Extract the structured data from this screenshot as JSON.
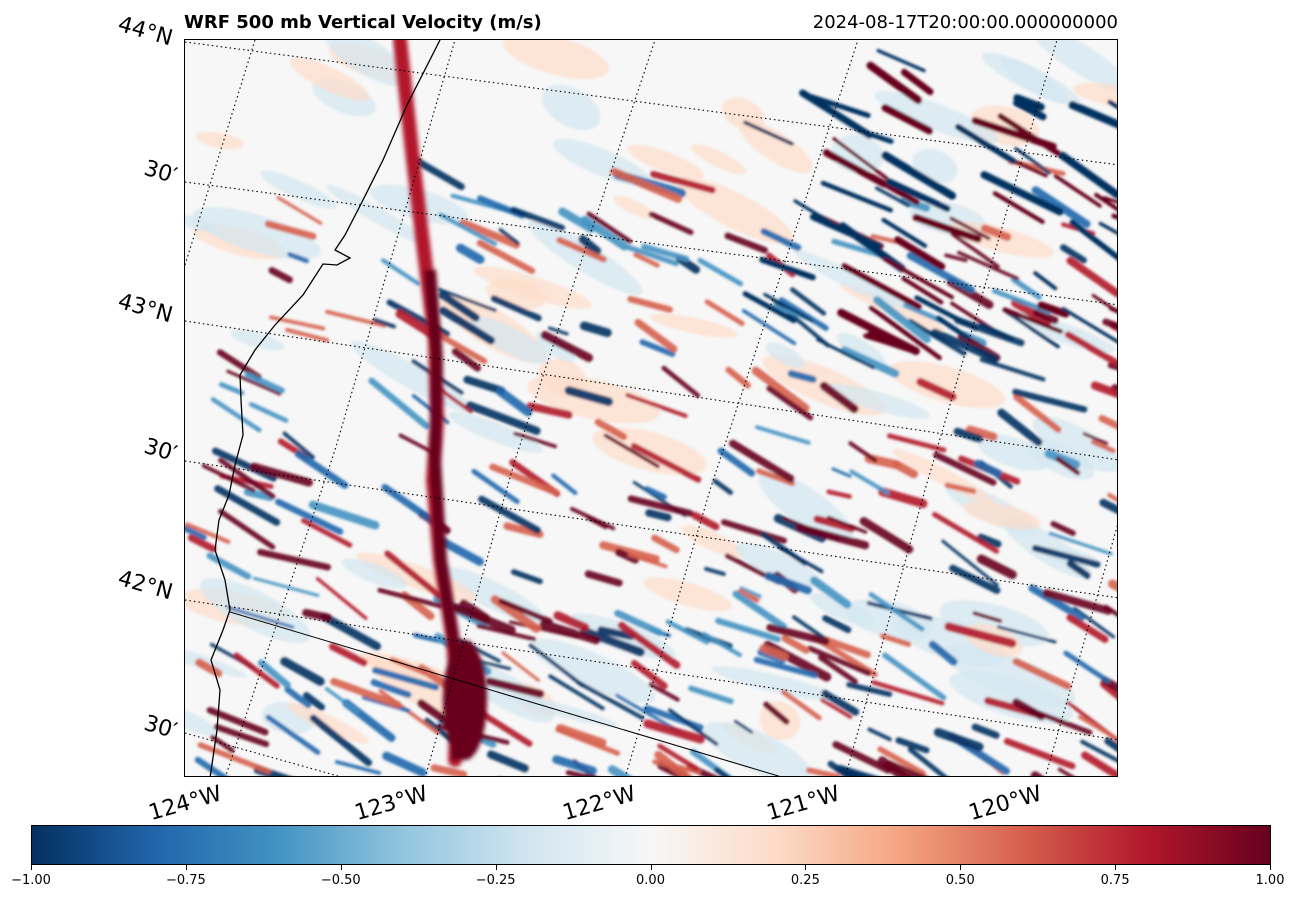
{
  "header": {
    "title": "WRF 500 mb Vertical Velocity (m/s)",
    "timestamp": "2024-08-17T20:00:00.000000000"
  },
  "map": {
    "projection_hint": "rotated lat/lon gridlines (dotted)",
    "field": "vertical_velocity",
    "colormap": "RdBu_r",
    "lat_labels": [
      "44°N",
      "30′",
      "43°N",
      "30′",
      "42°N",
      "30′"
    ],
    "lon_labels": [
      "124°W",
      "123°W",
      "122°W",
      "121°W",
      "120°W"
    ]
  },
  "colorbar": {
    "min": -1.0,
    "max": 1.0,
    "tick_labels": [
      "−1.00",
      "−0.75",
      "−0.50",
      "−0.25",
      "0.00",
      "0.25",
      "0.50",
      "0.75",
      "1.00"
    ],
    "colors": [
      "#053061",
      "#2166ac",
      "#4393c3",
      "#92c5de",
      "#d1e5f0",
      "#f7f7f7",
      "#fddbc7",
      "#f4a582",
      "#d6604d",
      "#b2182b",
      "#67001f"
    ]
  }
}
